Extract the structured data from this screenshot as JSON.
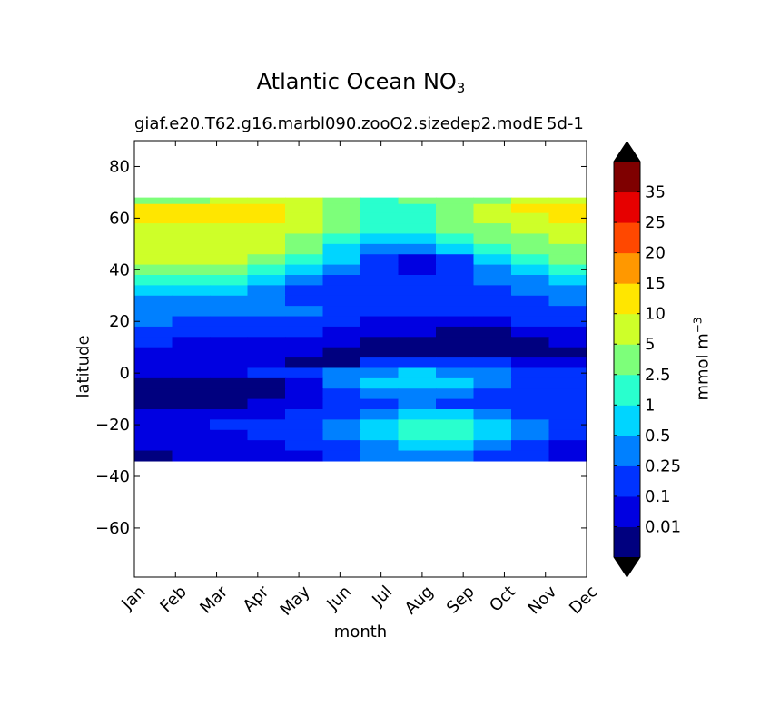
{
  "chart_data": {
    "type": "heatmap",
    "title_main": "Atlantic Ocean NO",
    "title_sub": "3",
    "subtitle": "giaf.e20.T62.g16.marbl090.zooO2.sizedep2.modE",
    "subtitle_right": "5d-1",
    "xlabel": "month",
    "ylabel": "latitude",
    "colorbar_label_main": "mmol m",
    "colorbar_label_sup": "−3",
    "x_tick_labels": [
      "Jan",
      "Feb",
      "Mar",
      "Apr",
      "May",
      "Jun",
      "Jul",
      "Aug",
      "Sep",
      "Oct",
      "Nov",
      "Dec"
    ],
    "y_ticks": [
      80,
      60,
      40,
      20,
      0,
      -20,
      -40,
      -60
    ],
    "y_tick_labels": [
      "80",
      "60",
      "40",
      "20",
      "0",
      "−20",
      "−40",
      "−60"
    ],
    "ylim": [
      -79,
      90
    ],
    "data_lat_range": [
      -34,
      68
    ],
    "levels": [
      "0.01",
      "0.1",
      "0.25",
      "0.5",
      "1",
      "2.5",
      "5",
      "10",
      "15",
      "20",
      "25",
      "35"
    ],
    "colors": [
      "#00007f",
      "#0000e1",
      "#0033ff",
      "#0080ff",
      "#00d5ff",
      "#29ffce",
      "#7dff7a",
      "#ceff29",
      "#ffe600",
      "#ff9800",
      "#ff4800",
      "#e60000",
      "#7f0000"
    ],
    "extend_low_color": "#000000",
    "extend_high_color": "#000000",
    "lat_rows": [
      67,
      64,
      60,
      56,
      52,
      48,
      44,
      40,
      36,
      32,
      28,
      24,
      20,
      16,
      12,
      8,
      4,
      0,
      -4,
      -8,
      -12,
      -16,
      -20,
      -24,
      -28,
      -32
    ],
    "bins": [
      [
        6,
        6,
        7,
        7,
        7,
        6,
        5,
        6,
        6,
        6,
        7,
        7
      ],
      [
        8,
        8,
        8,
        8,
        7,
        6,
        5,
        5,
        6,
        7,
        8,
        8
      ],
      [
        8,
        8,
        8,
        8,
        7,
        6,
        5,
        5,
        6,
        7,
        7,
        8
      ],
      [
        7,
        7,
        7,
        7,
        7,
        6,
        5,
        5,
        6,
        6,
        7,
        7
      ],
      [
        7,
        7,
        7,
        7,
        6,
        5,
        4,
        4,
        5,
        6,
        6,
        7
      ],
      [
        7,
        7,
        7,
        7,
        6,
        4,
        3,
        3,
        4,
        5,
        6,
        6
      ],
      [
        7,
        7,
        7,
        6,
        5,
        4,
        2,
        1,
        2,
        4,
        5,
        6
      ],
      [
        6,
        6,
        6,
        5,
        4,
        3,
        2,
        1,
        2,
        3,
        4,
        5
      ],
      [
        5,
        5,
        5,
        4,
        3,
        2,
        2,
        2,
        2,
        3,
        3,
        4
      ],
      [
        4,
        4,
        4,
        3,
        2,
        2,
        2,
        2,
        2,
        2,
        3,
        3
      ],
      [
        3,
        3,
        3,
        3,
        2,
        2,
        2,
        2,
        2,
        2,
        2,
        3
      ],
      [
        3,
        3,
        3,
        3,
        3,
        2,
        2,
        2,
        2,
        2,
        2,
        2
      ],
      [
        3,
        2,
        2,
        2,
        2,
        2,
        1,
        1,
        1,
        1,
        2,
        2
      ],
      [
        2,
        2,
        2,
        2,
        2,
        1,
        1,
        1,
        0,
        0,
        1,
        1
      ],
      [
        2,
        1,
        1,
        1,
        1,
        1,
        0,
        0,
        0,
        0,
        0,
        1
      ],
      [
        1,
        1,
        1,
        1,
        1,
        0,
        0,
        0,
        0,
        0,
        0,
        0
      ],
      [
        1,
        1,
        1,
        1,
        0,
        0,
        2,
        2,
        2,
        2,
        1,
        1
      ],
      [
        1,
        1,
        1,
        2,
        2,
        3,
        3,
        4,
        3,
        3,
        2,
        2
      ],
      [
        0,
        0,
        0,
        0,
        1,
        3,
        4,
        4,
        4,
        3,
        2,
        2
      ],
      [
        0,
        0,
        0,
        0,
        1,
        2,
        3,
        3,
        3,
        2,
        2,
        2
      ],
      [
        0,
        0,
        0,
        1,
        1,
        2,
        2,
        3,
        2,
        2,
        2,
        2
      ],
      [
        1,
        1,
        1,
        1,
        2,
        2,
        3,
        4,
        4,
        3,
        2,
        2
      ],
      [
        1,
        1,
        2,
        2,
        2,
        3,
        4,
        5,
        5,
        4,
        3,
        2
      ],
      [
        1,
        1,
        1,
        2,
        2,
        3,
        4,
        5,
        5,
        4,
        3,
        2
      ],
      [
        1,
        1,
        1,
        1,
        2,
        2,
        3,
        4,
        4,
        3,
        2,
        1
      ],
      [
        0,
        1,
        1,
        1,
        1,
        2,
        3,
        3,
        3,
        2,
        2,
        1
      ]
    ]
  }
}
